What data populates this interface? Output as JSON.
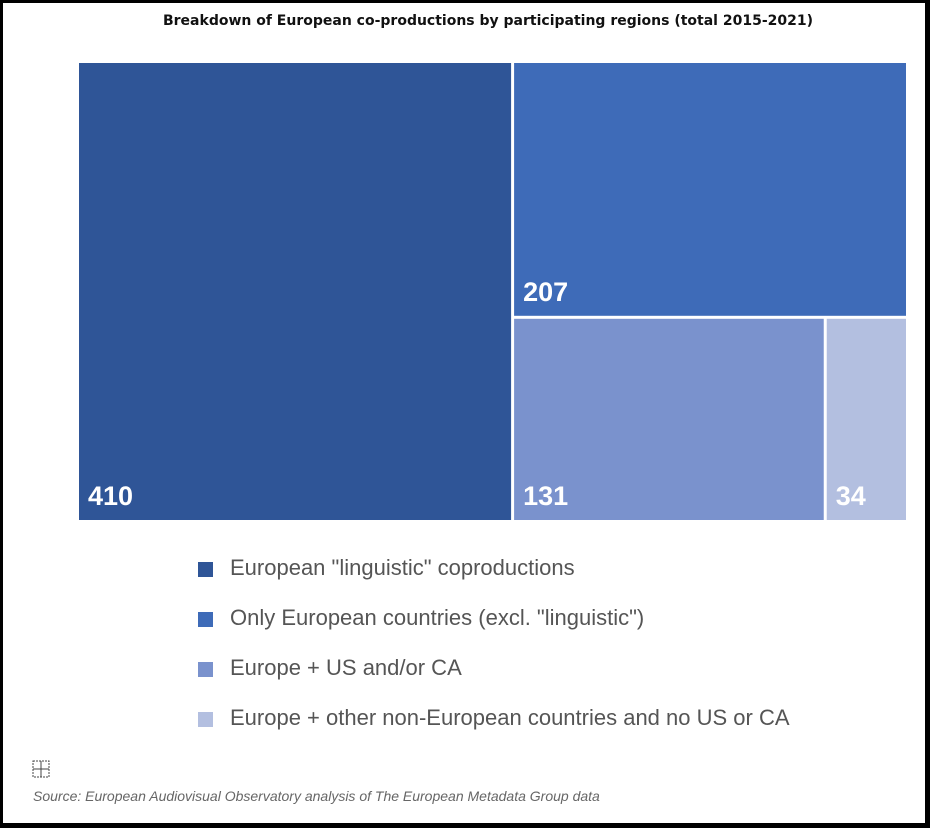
{
  "chart_data": {
    "type": "treemap",
    "title": "Breakdown of European co-productions by participating regions (total 2015-2021)",
    "items": [
      {
        "name": "European \"linguistic\" coproductions",
        "value": 410,
        "label": "410",
        "color": "#2f5597"
      },
      {
        "name": "Only European countries (excl. \"linguistic\")",
        "value": 207,
        "label": "207",
        "color": "#3e6bb8"
      },
      {
        "name": "Europe + US and/or CA",
        "value": 131,
        "label": "131",
        "color": "#7a92cd"
      },
      {
        "name": "Europe + other non-European countries and no US or CA",
        "value": 34,
        "label": "34",
        "color": "#b3bfe0"
      }
    ],
    "legend_position": "bottom"
  },
  "source": "Source: European Audiovisual Observatory analysis of The European Metadata Group data",
  "icons": {
    "source_icon": "grid-icon"
  }
}
